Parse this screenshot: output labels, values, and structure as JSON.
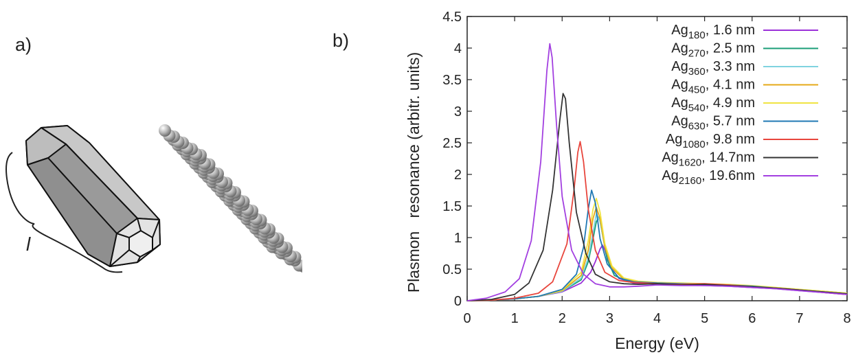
{
  "panels": {
    "a_label": "a)",
    "b_label": "b)",
    "length_symbol": "l"
  },
  "chart_data": {
    "type": "line",
    "xlabel": "Energy (eV)",
    "ylabel": "Plasmon   resonance (arbitr. units)",
    "xlim": [
      0,
      8
    ],
    "ylim": [
      0,
      4.5
    ],
    "xticks": [
      "0",
      "1",
      "2",
      "3",
      "4",
      "5",
      "6",
      "7",
      "8"
    ],
    "yticks": [
      "0",
      "0.5",
      "1",
      "1.5",
      "2",
      "2.5",
      "3",
      "3.5",
      "4",
      "4.5"
    ],
    "grid": false,
    "legend_position": "top-right",
    "series": [
      {
        "name_main": "Ag",
        "name_sub": "180",
        "name_rest": ", 1.6 nm",
        "color": "#9b30d9",
        "x": [
          0,
          0.5,
          1,
          1.5,
          2,
          2.4,
          2.6,
          2.7,
          2.8,
          2.85,
          2.9,
          3.0,
          3.2,
          3.5,
          4,
          4.5,
          5,
          5.5,
          6,
          6.5,
          7,
          7.5,
          8
        ],
        "y": [
          0,
          0.01,
          0.03,
          0.07,
          0.14,
          0.28,
          0.45,
          0.62,
          0.82,
          0.88,
          0.8,
          0.55,
          0.35,
          0.28,
          0.26,
          0.25,
          0.24,
          0.23,
          0.21,
          0.19,
          0.16,
          0.13,
          0.1
        ]
      },
      {
        "name_main": "Ag",
        "name_sub": "270",
        "name_rest": ", 2.5 nm",
        "color": "#1a9e77",
        "x": [
          0,
          0.5,
          1,
          1.5,
          2,
          2.4,
          2.55,
          2.65,
          2.72,
          2.78,
          2.85,
          2.95,
          3.1,
          3.4,
          4,
          4.5,
          5,
          5.5,
          6,
          6.5,
          7,
          7.5,
          8
        ],
        "y": [
          0,
          0.01,
          0.03,
          0.07,
          0.15,
          0.33,
          0.62,
          0.98,
          1.25,
          1.33,
          1.05,
          0.65,
          0.4,
          0.3,
          0.27,
          0.26,
          0.25,
          0.24,
          0.22,
          0.2,
          0.17,
          0.14,
          0.11
        ]
      },
      {
        "name_main": "Ag",
        "name_sub": "360",
        "name_rest": ", 3.3 nm",
        "color": "#7fd3df",
        "x": [
          0,
          0.5,
          1,
          1.5,
          2,
          2.4,
          2.55,
          2.65,
          2.72,
          2.8,
          2.9,
          3.05,
          3.3,
          3.6,
          4,
          4.5,
          5,
          5.5,
          6,
          6.5,
          7,
          7.5,
          8
        ],
        "y": [
          0,
          0.01,
          0.03,
          0.07,
          0.15,
          0.36,
          0.68,
          1.08,
          1.38,
          1.25,
          0.85,
          0.52,
          0.34,
          0.29,
          0.27,
          0.26,
          0.25,
          0.24,
          0.22,
          0.2,
          0.17,
          0.14,
          0.11
        ]
      },
      {
        "name_main": "Ag",
        "name_sub": "450",
        "name_rest": ", 4.1 nm",
        "color": "#e6a817",
        "x": [
          0,
          0.5,
          1,
          1.5,
          2,
          2.4,
          2.55,
          2.65,
          2.72,
          2.8,
          2.9,
          3.05,
          3.3,
          3.6,
          4,
          4.5,
          5,
          5.5,
          6,
          6.5,
          7,
          7.5,
          8
        ],
        "y": [
          0,
          0.01,
          0.03,
          0.07,
          0.16,
          0.4,
          0.8,
          1.3,
          1.48,
          1.3,
          0.85,
          0.52,
          0.34,
          0.3,
          0.28,
          0.27,
          0.26,
          0.25,
          0.23,
          0.2,
          0.17,
          0.15,
          0.12
        ]
      },
      {
        "name_main": "Ag",
        "name_sub": "540",
        "name_rest": ", 4.9 nm",
        "color": "#f0e442",
        "x": [
          0,
          0.5,
          1,
          1.5,
          2,
          2.4,
          2.55,
          2.65,
          2.72,
          2.8,
          2.9,
          3.05,
          3.3,
          3.6,
          4,
          4.5,
          5,
          5.5,
          6,
          6.5,
          7,
          7.5,
          8
        ],
        "y": [
          0,
          0.01,
          0.03,
          0.07,
          0.17,
          0.45,
          0.95,
          1.45,
          1.62,
          1.4,
          0.9,
          0.55,
          0.36,
          0.31,
          0.29,
          0.28,
          0.27,
          0.26,
          0.24,
          0.21,
          0.18,
          0.15,
          0.12
        ]
      },
      {
        "name_main": "Ag",
        "name_sub": "630",
        "name_rest": ", 5.7 nm",
        "color": "#1f78b4",
        "x": [
          0,
          0.5,
          1,
          1.5,
          2,
          2.3,
          2.45,
          2.55,
          2.62,
          2.7,
          2.8,
          2.95,
          3.2,
          3.5,
          4,
          4.5,
          5,
          5.5,
          6,
          6.5,
          7,
          7.5,
          8
        ],
        "y": [
          0,
          0.01,
          0.03,
          0.07,
          0.18,
          0.42,
          0.85,
          1.45,
          1.75,
          1.55,
          0.98,
          0.58,
          0.36,
          0.3,
          0.28,
          0.27,
          0.26,
          0.25,
          0.23,
          0.2,
          0.17,
          0.14,
          0.11
        ]
      },
      {
        "name_main": "Ag",
        "name_sub": "1080",
        "name_rest": ", 9.8 nm",
        "color": "#e8453c",
        "x": [
          0,
          0.5,
          1,
          1.5,
          1.8,
          2.1,
          2.25,
          2.33,
          2.38,
          2.45,
          2.55,
          2.7,
          2.9,
          3.2,
          3.5,
          4,
          4.5,
          5,
          5.5,
          6,
          6.5,
          7,
          7.5,
          8
        ],
        "y": [
          0,
          0.01,
          0.04,
          0.12,
          0.3,
          0.9,
          1.75,
          2.35,
          2.52,
          2.2,
          1.45,
          0.8,
          0.45,
          0.32,
          0.29,
          0.27,
          0.26,
          0.27,
          0.25,
          0.22,
          0.2,
          0.17,
          0.13,
          0.1
        ]
      },
      {
        "name_main": "Ag",
        "name_sub": "1620",
        "name_rest": ", 14.7nm",
        "color": "#333333",
        "x": [
          0,
          0.5,
          1,
          1.3,
          1.6,
          1.8,
          1.95,
          2.02,
          2.07,
          2.15,
          2.3,
          2.5,
          2.7,
          3.0,
          3.3,
          3.6,
          4,
          4.5,
          5,
          5.5,
          6,
          6.5,
          7,
          7.5,
          8
        ],
        "y": [
          0,
          0.02,
          0.1,
          0.28,
          0.8,
          1.75,
          2.85,
          3.28,
          3.2,
          2.5,
          1.4,
          0.75,
          0.42,
          0.3,
          0.27,
          0.26,
          0.27,
          0.25,
          0.26,
          0.24,
          0.22,
          0.2,
          0.17,
          0.14,
          0.11
        ]
      },
      {
        "name_main": "Ag",
        "name_sub": "2160",
        "name_rest": ", 19.6nm",
        "color": "#a23fe0",
        "x": [
          0,
          0.4,
          0.8,
          1.1,
          1.35,
          1.55,
          1.68,
          1.74,
          1.79,
          1.88,
          2.0,
          2.2,
          2.45,
          2.7,
          3.0,
          3.3,
          3.6,
          4,
          4.5,
          5,
          5.5,
          6,
          6.5,
          7,
          7.5,
          8
        ],
        "y": [
          0,
          0.04,
          0.14,
          0.35,
          0.95,
          2.2,
          3.65,
          4.07,
          3.85,
          2.8,
          1.65,
          0.8,
          0.42,
          0.27,
          0.22,
          0.22,
          0.23,
          0.25,
          0.24,
          0.24,
          0.23,
          0.21,
          0.19,
          0.16,
          0.13,
          0.1
        ]
      }
    ]
  }
}
